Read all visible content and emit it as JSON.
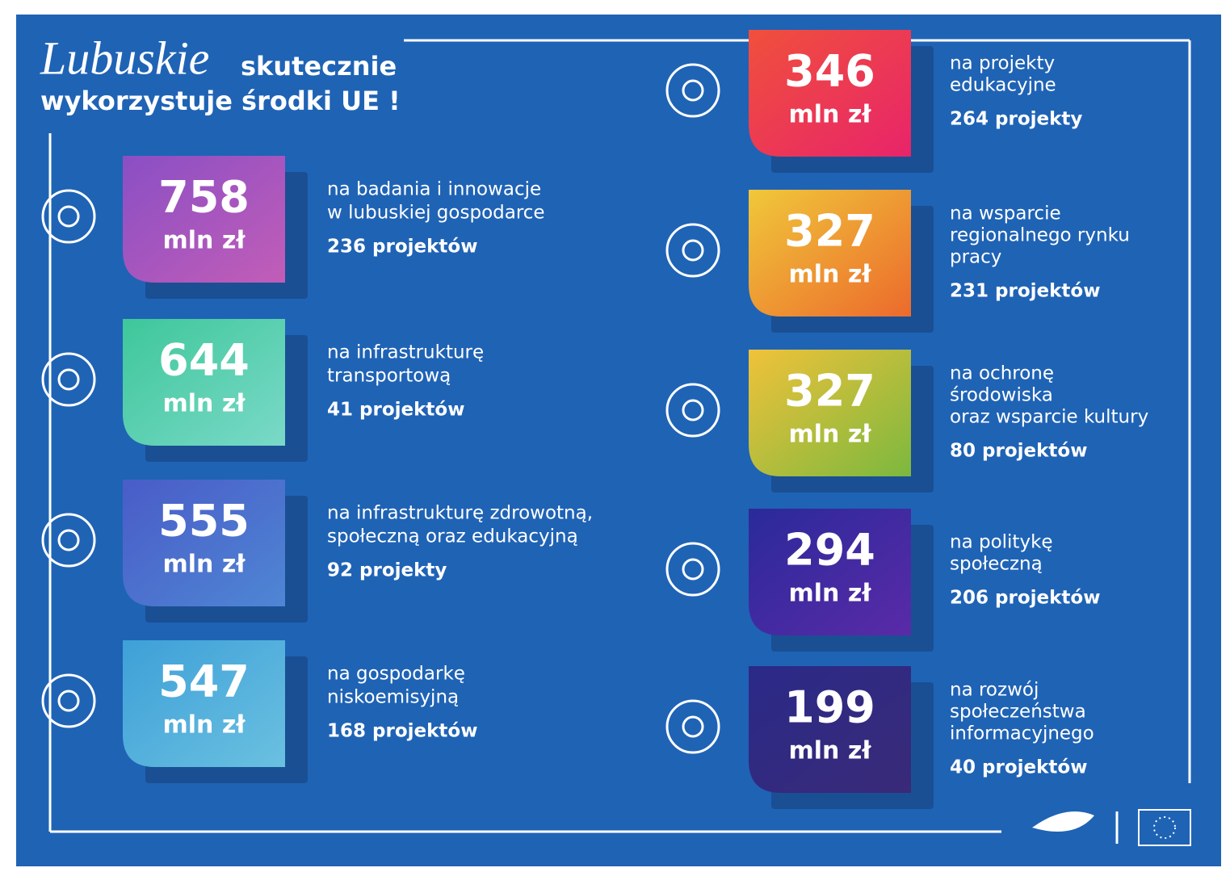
{
  "header": {
    "title_script": "Lubuskie",
    "title_rest": "skutecznie",
    "title_line2": "wykorzystuje środki UE !"
  },
  "items": [
    {
      "amount": 758,
      "unit": "mln zł",
      "description": [
        "na badania i innowacje",
        "w lubuskiej gospodarce"
      ],
      "projects": "236 projektów"
    },
    {
      "amount": 644,
      "unit": "mln zł",
      "description": [
        "na infrastrukturę",
        "transportową"
      ],
      "projects": "41 projektów"
    },
    {
      "amount": 555,
      "unit": "mln zł",
      "description": [
        "na infrastrukturę zdrowotną,",
        "społeczną oraz edukacyjną"
      ],
      "projects": "92 projekty"
    },
    {
      "amount": 547,
      "unit": "mln zł",
      "description": [
        "na gospodarkę",
        "niskoemisyjną"
      ],
      "projects": "168 projektów"
    },
    {
      "amount": 346,
      "unit": "mln zł",
      "description": [
        "na projekty",
        "edukacyjne"
      ],
      "projects": "264 projekty"
    },
    {
      "amount": 327,
      "unit": "mln zł",
      "description": [
        "na wsparcie",
        "regionalnego rynku",
        "pracy"
      ],
      "projects": "231 projektów"
    },
    {
      "amount": 327,
      "unit": "mln zł",
      "description": [
        "na ochronę",
        "środowiska",
        "oraz wsparcie kultury"
      ],
      "projects": "80 projektów"
    },
    {
      "amount": 294,
      "unit": "mln zł",
      "description": [
        "na politykę",
        "społeczną"
      ],
      "projects": "206 projektów"
    },
    {
      "amount": 199,
      "unit": "mln zł",
      "description": [
        "na rozwój",
        "społeczeństwa",
        "informacyjnego"
      ],
      "projects": "40 projektów"
    }
  ]
}
